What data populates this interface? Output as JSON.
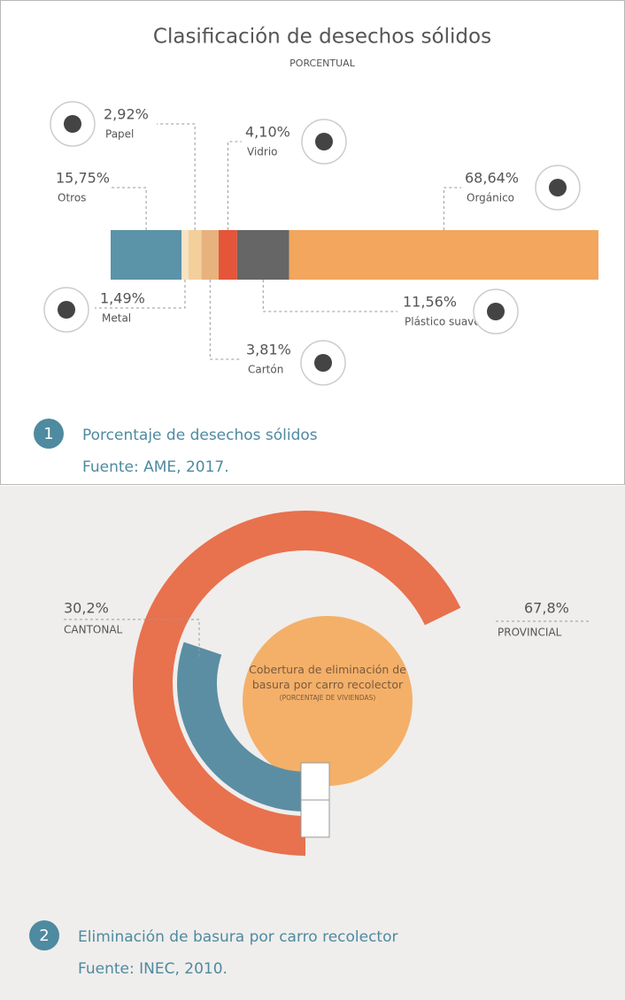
{
  "chart_data": [
    {
      "type": "stacked-bar",
      "title": "Clasificación de desechos sólidos",
      "subtitle": "PORCENTUAL",
      "categories": [
        "Otros",
        "Metal",
        "Papel",
        "Cartón",
        "Vidrio",
        "Plástico suave",
        "Orgánico"
      ],
      "values": [
        15.75,
        1.49,
        2.92,
        3.81,
        4.1,
        11.56,
        68.64
      ],
      "value_labels": [
        "15,75%",
        "1,49%",
        "2,92%",
        "3,81%",
        "4,10%",
        "11,56%",
        "68,64%"
      ],
      "colors": [
        "#5b93a8",
        "#f7e3c3",
        "#f3cf9c",
        "#e7b27e",
        "#e4553a",
        "#666666",
        "#f2a65e"
      ],
      "figure_number": 1,
      "caption": "Porcentaje de desechos sólidos",
      "source": "Fuente: AME, 2017."
    },
    {
      "type": "radial-bar",
      "center_label": "Cobertura de eliminación de basura por carro recolector",
      "center_sublabel": "(PORCENTAJE DE VIVIENDAS)",
      "categories": [
        "CANTONAL",
        "PROVINCIAL"
      ],
      "values": [
        30.2,
        67.8
      ],
      "value_labels": [
        "30,2%",
        "67,8%"
      ],
      "colors": [
        "#5b8ea3",
        "#e8714e"
      ],
      "center_color": "#f4b068",
      "figure_number": 2,
      "caption": "Eliminación de basura por carro recolector",
      "source": "Fuente: INEC, 2010."
    }
  ]
}
